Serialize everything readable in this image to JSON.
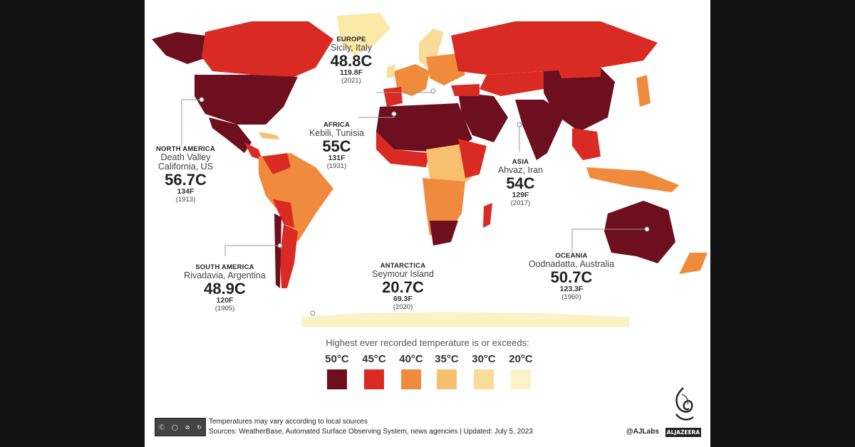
{
  "callouts": {
    "europe": {
      "region": "EUROPE",
      "place": "Sicily, Italy",
      "temp_c": "48.8C",
      "temp_f": "119.8F",
      "year": "(2021)"
    },
    "africa": {
      "region": "AFRICA",
      "place": "Kebili, Tunisia",
      "temp_c": "55C",
      "temp_f": "131F",
      "year": "(1931)"
    },
    "north_america": {
      "region": "NORTH AMERICA",
      "place1": "Death Valley",
      "place2": "California, US",
      "temp_c": "56.7C",
      "temp_f": "134F",
      "year": "(1913)"
    },
    "asia": {
      "region": "ASIA",
      "place": "Ahvaz, Iran",
      "temp_c": "54C",
      "temp_f": "129F",
      "year": "(2017)"
    },
    "oceania": {
      "region": "OCEANIA",
      "place": "Oodnadatta, Australia",
      "temp_c": "50.7C",
      "temp_f": "123.3F",
      "year": "(1960)"
    },
    "south_america": {
      "region": "SOUTH AMERICA",
      "place": "Rivadavia, Argentina",
      "temp_c": "48.9C",
      "temp_f": "120F",
      "year": "(1905)"
    },
    "antarctica": {
      "region": "ANTARCTICA",
      "place": "Seymour Island",
      "temp_c": "20.7C",
      "temp_f": "69.3F",
      "year": "(2020)"
    }
  },
  "legend": {
    "title": "Highest ever recorded temperature is or exceeds:",
    "items": [
      {
        "label": "50°C",
        "color": "#6e0f1f"
      },
      {
        "label": "45°C",
        "color": "#d92a23"
      },
      {
        "label": "40°C",
        "color": "#f08a3c"
      },
      {
        "label": "35°C",
        "color": "#f7c06e"
      },
      {
        "label": "30°C",
        "color": "#f9dc9a"
      },
      {
        "label": "20°C",
        "color": "#fbf3c8"
      }
    ]
  },
  "footer": {
    "license_badge": "cc BY NC SA",
    "line1": "Temperatures may vary according to local sources",
    "line2": "Sources: WeatherBase, Automated Surface Observing System, news agencies   |   Updated: July 5, 2023",
    "handle": "@AJLabs",
    "logo": "ALJAZEERA"
  },
  "colors": {
    "c50": "#6e0f1f",
    "c45": "#d92a23",
    "c40": "#f08a3c",
    "c35": "#f7c06e",
    "c30": "#f9dc9a",
    "c20": "#fbf3c8"
  }
}
